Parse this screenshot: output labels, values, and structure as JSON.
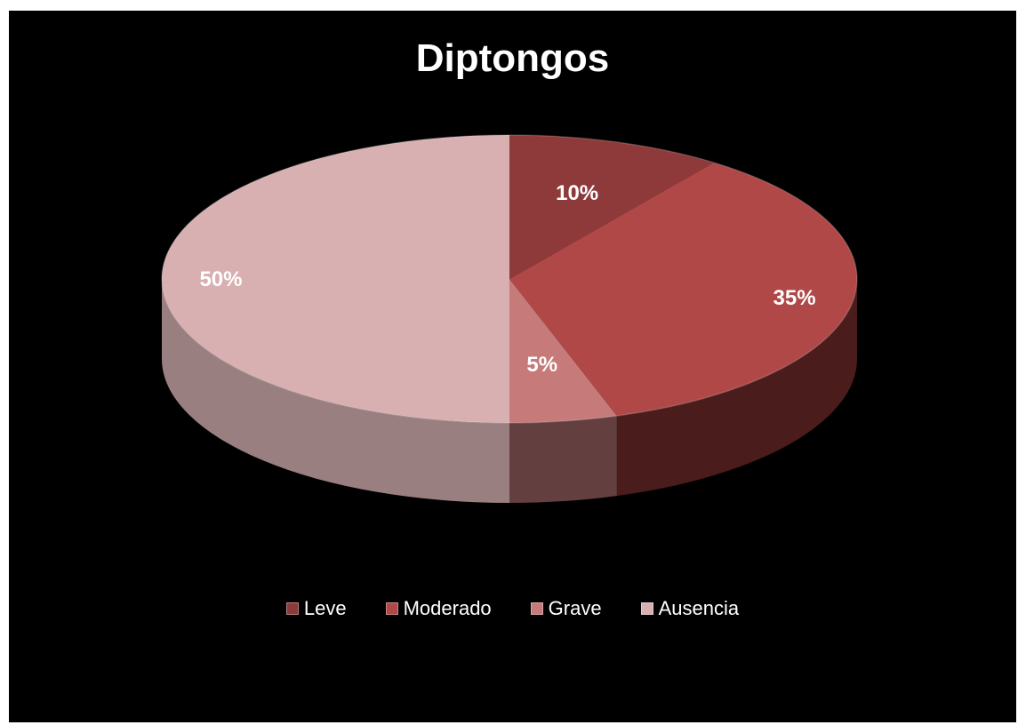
{
  "chart_data": {
    "type": "pie",
    "title": "Diptongos",
    "categories": [
      "Leve",
      "Moderado",
      "Grave",
      "Ausencia"
    ],
    "values": [
      10,
      35,
      5,
      50
    ],
    "labels": [
      "10%",
      "35%",
      "5%",
      "50%"
    ],
    "colors": [
      "#8e3a3a",
      "#b04848",
      "#c77a7a",
      "#d8b0b1"
    ],
    "side_colors": [
      "#5a2222",
      "#4a1c1c",
      "#633f3f",
      "#9a7f80"
    ],
    "legend_position": "bottom",
    "style": "3d"
  }
}
